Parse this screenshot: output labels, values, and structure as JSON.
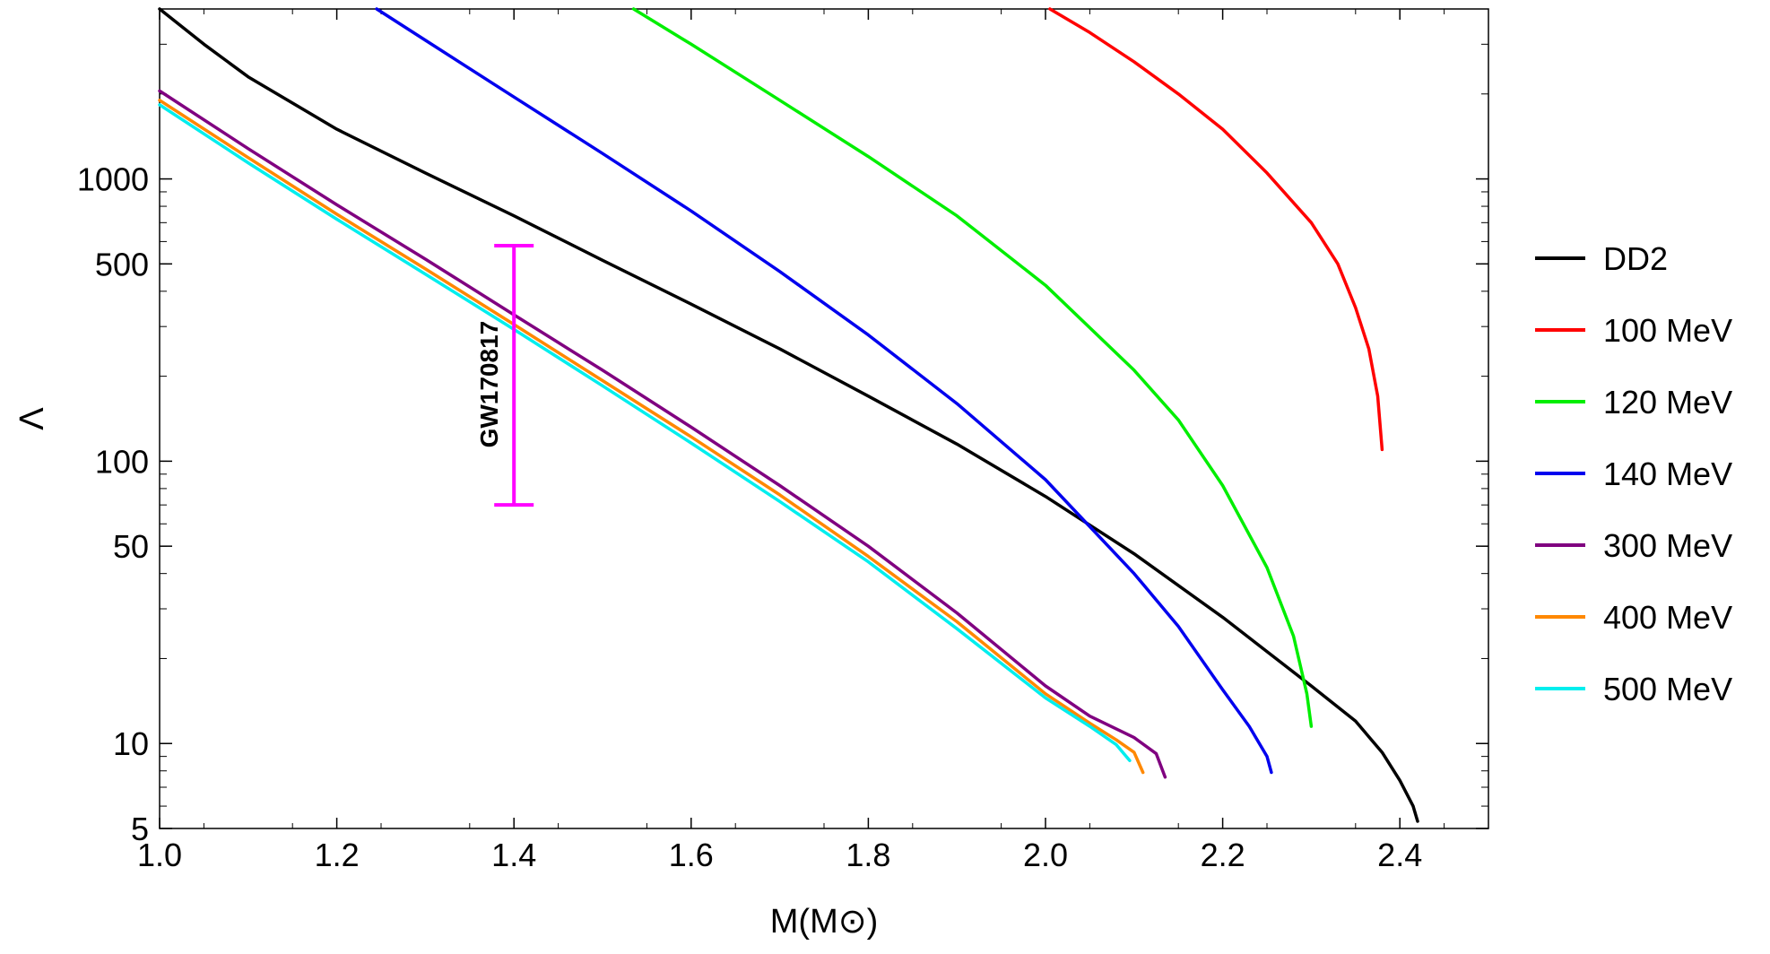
{
  "chart_data": {
    "type": "line",
    "title": "",
    "xlabel": "M(M⊙)",
    "ylabel": "Λ",
    "xlim": [
      1.0,
      2.5
    ],
    "ylim": [
      5,
      4000
    ],
    "yscale": "log",
    "x_ticks": [
      1.0,
      1.2,
      1.4,
      1.6,
      1.8,
      2.0,
      2.2,
      2.4
    ],
    "x_tick_labels": [
      "1.0",
      "1.2",
      "1.4",
      "1.6",
      "1.8",
      "2.0",
      "2.2",
      "2.4"
    ],
    "y_ticks": [
      5,
      10,
      50,
      100,
      500,
      1000
    ],
    "y_tick_labels": [
      "5",
      "10",
      "50",
      "100",
      "500",
      "1000"
    ],
    "legend_position": "right",
    "series": [
      {
        "name": "DD2",
        "color": "#000000",
        "points": [
          [
            1.0,
            4000
          ],
          [
            1.05,
            3000
          ],
          [
            1.1,
            2300
          ],
          [
            1.2,
            1500
          ],
          [
            1.3,
            1050
          ],
          [
            1.4,
            740
          ],
          [
            1.5,
            515
          ],
          [
            1.6,
            360
          ],
          [
            1.7,
            250
          ],
          [
            1.8,
            170
          ],
          [
            1.9,
            115
          ],
          [
            2.0,
            75
          ],
          [
            2.1,
            47
          ],
          [
            2.2,
            28
          ],
          [
            2.3,
            16
          ],
          [
            2.35,
            12
          ],
          [
            2.38,
            9.3
          ],
          [
            2.4,
            7.4
          ],
          [
            2.415,
            6.0
          ],
          [
            2.42,
            5.3
          ]
        ]
      },
      {
        "name": "100 MeV",
        "color": "#ff0000",
        "points": [
          [
            2.005,
            4000
          ],
          [
            2.05,
            3300
          ],
          [
            2.1,
            2600
          ],
          [
            2.15,
            2000
          ],
          [
            2.2,
            1500
          ],
          [
            2.25,
            1050
          ],
          [
            2.3,
            700
          ],
          [
            2.33,
            500
          ],
          [
            2.35,
            350
          ],
          [
            2.365,
            250
          ],
          [
            2.375,
            170
          ],
          [
            2.38,
            110
          ]
        ]
      },
      {
        "name": "120 MeV",
        "color": "#00ee00",
        "points": [
          [
            1.535,
            4000
          ],
          [
            1.6,
            3000
          ],
          [
            1.7,
            1900
          ],
          [
            1.8,
            1200
          ],
          [
            1.9,
            740
          ],
          [
            2.0,
            420
          ],
          [
            2.1,
            210
          ],
          [
            2.15,
            140
          ],
          [
            2.2,
            82
          ],
          [
            2.25,
            42
          ],
          [
            2.28,
            24
          ],
          [
            2.295,
            15
          ],
          [
            2.3,
            11.5
          ]
        ]
      },
      {
        "name": "140 MeV",
        "color": "#0000ee",
        "points": [
          [
            1.245,
            4000
          ],
          [
            1.3,
            3100
          ],
          [
            1.4,
            1950
          ],
          [
            1.5,
            1230
          ],
          [
            1.6,
            770
          ],
          [
            1.7,
            470
          ],
          [
            1.8,
            280
          ],
          [
            1.9,
            160
          ],
          [
            2.0,
            86
          ],
          [
            2.1,
            40
          ],
          [
            2.15,
            26
          ],
          [
            2.2,
            15.5
          ],
          [
            2.23,
            11.5
          ],
          [
            2.25,
            9.0
          ],
          [
            2.255,
            7.9
          ]
        ]
      },
      {
        "name": "300 MeV",
        "color": "#800080",
        "points": [
          [
            1.0,
            2050
          ],
          [
            1.1,
            1280
          ],
          [
            1.2,
            810
          ],
          [
            1.3,
            520
          ],
          [
            1.4,
            330
          ],
          [
            1.5,
            210
          ],
          [
            1.6,
            132
          ],
          [
            1.7,
            82
          ],
          [
            1.8,
            50
          ],
          [
            1.9,
            29
          ],
          [
            2.0,
            16
          ],
          [
            2.05,
            12.5
          ],
          [
            2.1,
            10.5
          ],
          [
            2.125,
            9.2
          ],
          [
            2.135,
            7.6
          ]
        ]
      },
      {
        "name": "400 MeV",
        "color": "#ff8800",
        "points": [
          [
            1.0,
            1900
          ],
          [
            1.1,
            1190
          ],
          [
            1.2,
            750
          ],
          [
            1.3,
            480
          ],
          [
            1.4,
            305
          ],
          [
            1.5,
            193
          ],
          [
            1.6,
            122
          ],
          [
            1.7,
            76
          ],
          [
            1.8,
            46
          ],
          [
            1.9,
            27
          ],
          [
            2.0,
            15
          ],
          [
            2.05,
            11.8
          ],
          [
            2.08,
            10.3
          ],
          [
            2.1,
            9.3
          ],
          [
            2.11,
            7.9
          ]
        ]
      },
      {
        "name": "500 MeV",
        "color": "#00eeee",
        "points": [
          [
            1.0,
            1830
          ],
          [
            1.1,
            1140
          ],
          [
            1.2,
            720
          ],
          [
            1.3,
            460
          ],
          [
            1.4,
            293
          ],
          [
            1.5,
            185
          ],
          [
            1.6,
            116
          ],
          [
            1.7,
            72
          ],
          [
            1.8,
            44
          ],
          [
            1.9,
            25.5
          ],
          [
            2.0,
            14.5
          ],
          [
            2.05,
            11.5
          ],
          [
            2.08,
            9.9
          ],
          [
            2.095,
            8.7
          ]
        ]
      }
    ],
    "annotations": [
      {
        "label": "GW170817",
        "type": "error_bar",
        "x": 1.4,
        "y_low": 70,
        "y_high": 580,
        "color": "#ff00ff"
      }
    ]
  }
}
